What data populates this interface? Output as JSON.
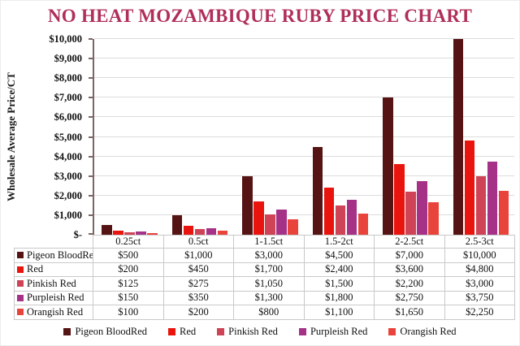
{
  "title": "NO HEAT MOZAMBIQUE RUBY PRICE CHART",
  "title_color": "#B02F59",
  "axis_color": "#7b6565",
  "gridline_color": "#dcdcdc",
  "chart_data": {
    "type": "bar",
    "title": "NO HEAT MOZAMBIQUE RUBY PRICE CHART",
    "ylabel": "Wholesale Average Price/CT",
    "xlabel": "",
    "ylim": [
      0,
      10000
    ],
    "ytick_step": 1000,
    "ytick_labels": [
      "$-",
      "$1,000",
      "$2,000",
      "$3,000",
      "$4,000",
      "$5,000",
      "$6,000",
      "$7,000",
      "$8,000",
      "$9,000",
      "$10,000"
    ],
    "grid": true,
    "legend_position": "bottom",
    "show_data_table": true,
    "categories": [
      "0.25ct",
      "0.5ct",
      "1-1.5ct",
      "1.5-2ct",
      "2-2.5ct",
      "2.5-3ct"
    ],
    "series": [
      {
        "name": "Pigeon BloodRed",
        "color": "#551313",
        "values": [
          500,
          1000,
          3000,
          4500,
          7000,
          10000
        ]
      },
      {
        "name": "Red",
        "color": "#E9140D",
        "values": [
          200,
          450,
          1700,
          2400,
          3600,
          4800
        ]
      },
      {
        "name": "Pinkish Red",
        "color": "#CE4356",
        "values": [
          125,
          275,
          1050,
          1500,
          2200,
          3000
        ]
      },
      {
        "name": "Purpleish Red",
        "color": "#A53287",
        "values": [
          150,
          350,
          1300,
          1800,
          2750,
          3750
        ]
      },
      {
        "name": "Orangish Red",
        "color": "#E9443C",
        "values": [
          100,
          200,
          800,
          1100,
          1650,
          2250
        ]
      }
    ],
    "table_values": [
      [
        "$500",
        "$1,000",
        "$3,000",
        "$4,500",
        "$7,000",
        "$10,000"
      ],
      [
        "$200",
        "$450",
        "$1,700",
        "$2,400",
        "$3,600",
        "$4,800"
      ],
      [
        "$125",
        "$275",
        "$1,050",
        "$1,500",
        "$2,200",
        "$3,000"
      ],
      [
        "$150",
        "$350",
        "$1,300",
        "$1,800",
        "$2,750",
        "$3,750"
      ],
      [
        "$100",
        "$200",
        "$800",
        "$1,100",
        "$1,650",
        "$2,250"
      ]
    ]
  }
}
